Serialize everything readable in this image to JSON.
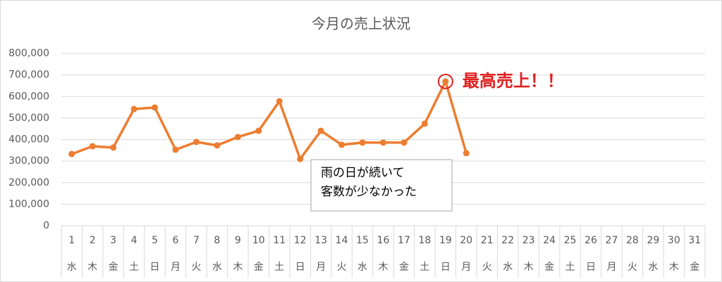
{
  "chart_data": {
    "type": "line",
    "title": "今月の売上状況",
    "categories": [
      "1",
      "2",
      "3",
      "4",
      "5",
      "6",
      "7",
      "8",
      "9",
      "10",
      "11",
      "12",
      "13",
      "14",
      "15",
      "16",
      "17",
      "18",
      "19",
      "20",
      "21",
      "22",
      "23",
      "24",
      "25",
      "26",
      "27",
      "28",
      "29",
      "30",
      "31"
    ],
    "weekdays": [
      "水",
      "木",
      "金",
      "土",
      "日",
      "月",
      "火",
      "水",
      "木",
      "金",
      "土",
      "日",
      "月",
      "火",
      "水",
      "木",
      "金",
      "土",
      "日",
      "月",
      "火",
      "水",
      "木",
      "金",
      "土",
      "日",
      "月",
      "火",
      "水",
      "木",
      "金"
    ],
    "values": [
      333000,
      369000,
      363000,
      542000,
      549000,
      353000,
      389000,
      373000,
      412000,
      441000,
      578000,
      310000,
      441000,
      376000,
      386000,
      386000,
      386000,
      474000,
      670000,
      337000,
      null,
      null,
      null,
      null,
      null,
      null,
      null,
      null,
      null,
      null,
      null
    ],
    "color": "#ed7d31",
    "ylim": [
      0,
      800000
    ],
    "yticks": [
      0,
      {
        "value": 100000,
        "label": "100,000"
      },
      {
        "value": 200000,
        "label": "200,000"
      },
      {
        "value": 300000,
        "label": "300,000"
      },
      {
        "value": 400000,
        "label": "400,000"
      },
      {
        "value": 500000,
        "label": "500,000"
      },
      {
        "value": 600000,
        "label": "600,000"
      },
      {
        "value": 700000,
        "label": "700,000"
      },
      {
        "value": 800000,
        "label": "800,000"
      }
    ],
    "grid": true,
    "annotations": [
      {
        "text": "最高売上！！",
        "color": "#e02020"
      },
      {
        "lines": [
          "雨の日が続いて",
          "客数が少なかった"
        ]
      }
    ]
  }
}
